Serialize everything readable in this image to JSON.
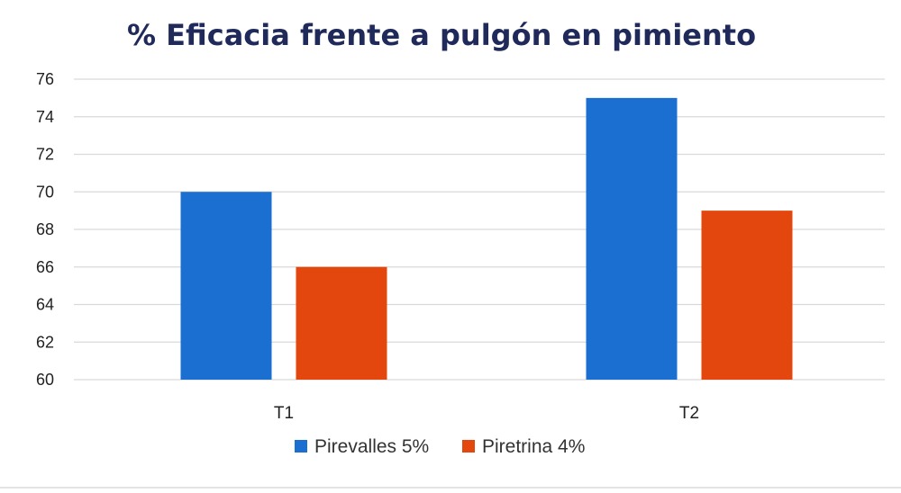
{
  "chart_data": {
    "type": "bar",
    "title": "% Eficacia frente a pulgón en pimiento",
    "categories": [
      "T1",
      "T2"
    ],
    "series": [
      {
        "name": "Pirevalles 5%",
        "values": [
          70,
          75
        ],
        "color": "#1a6fd1"
      },
      {
        "name": "Piretrina 4%",
        "values": [
          66,
          69
        ],
        "color": "#e3470e"
      }
    ],
    "ylim": [
      60,
      76
    ],
    "yticks": [
      60,
      62,
      64,
      66,
      68,
      70,
      72,
      74,
      76
    ],
    "grid": true,
    "legend_position": "bottom"
  },
  "colors": {
    "title": "#1f2a5a",
    "gridline": "#d9d9d9"
  }
}
